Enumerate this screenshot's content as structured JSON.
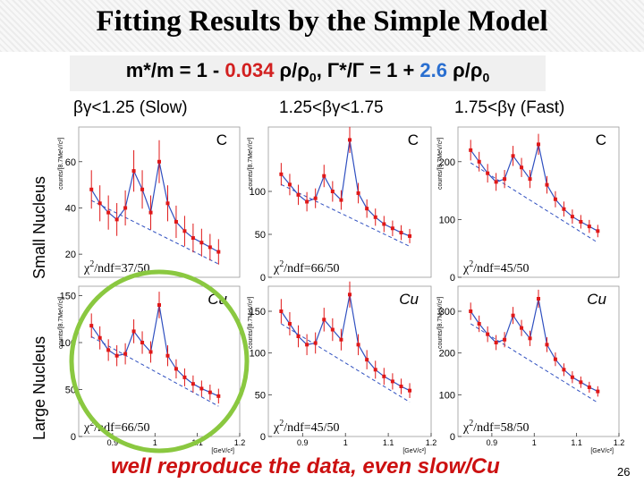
{
  "slide": {
    "title": "Fitting Results by the Simple Model",
    "formula": {
      "p1": "m*/m = 1 - ",
      "k1": "0.034",
      "p2": " ρ/ρ",
      "s1": "0",
      "p3": ",  Γ*/Γ = 1 + ",
      "k2": "2.6",
      "p4": " ρ/ρ",
      "s2": "0"
    },
    "col_heads": [
      "βγ<1.25 (Slow)",
      "1.25<βγ<1.75",
      "1.75<βγ (Fast)"
    ],
    "row_labels": [
      "Small Nucleus",
      "Large Nucleus"
    ],
    "bottom_text": "well reproduce the data, even slow/Cu",
    "page_number": "26",
    "colors": {
      "accent_red": "#d22020",
      "accent_blue": "#2a6fd0",
      "highlight_green": "#8ac840",
      "data_red": "#e01818",
      "fit_blue": "#3050c0",
      "bottom_text": "#cc1010"
    }
  },
  "chart_data": [
    {
      "type": "line",
      "target": "C",
      "x": [
        0.85,
        0.87,
        0.89,
        0.91,
        0.93,
        0.95,
        0.97,
        0.99,
        1.01,
        1.03,
        1.05,
        1.07,
        1.09,
        1.11,
        1.13,
        1.15
      ],
      "series": [
        {
          "name": "",
          "values": [
            48,
            42,
            38,
            35,
            40,
            56,
            48,
            38,
            60,
            42,
            34,
            30,
            27,
            25,
            23,
            21
          ]
        }
      ],
      "chi2": "/ndf=37/50",
      "ytick_labels": [
        "20",
        "40",
        "60"
      ],
      "ylim": [
        10,
        75
      ],
      "ylabel": "counts/[8.7MeV/c²]"
    },
    {
      "type": "line",
      "target": "C",
      "x": [
        0.85,
        0.87,
        0.89,
        0.91,
        0.93,
        0.95,
        0.97,
        0.99,
        1.01,
        1.03,
        1.05,
        1.07,
        1.09,
        1.11,
        1.13,
        1.15
      ],
      "series": [
        {
          "name": "",
          "values": [
            120,
            108,
            96,
            88,
            92,
            118,
            100,
            90,
            160,
            98,
            80,
            70,
            62,
            57,
            52,
            48
          ]
        }
      ],
      "chi2": "/ndf=66/50",
      "ytick_labels": [
        "0",
        "50",
        "100"
      ],
      "ylim": [
        0,
        175
      ],
      "ylabel": "counts/[8.7MeV/c²]"
    },
    {
      "type": "line",
      "target": "C",
      "x": [
        0.85,
        0.87,
        0.89,
        0.91,
        0.93,
        0.95,
        0.97,
        0.99,
        1.01,
        1.03,
        1.05,
        1.07,
        1.09,
        1.11,
        1.13,
        1.15
      ],
      "series": [
        {
          "name": "",
          "values": [
            220,
            200,
            180,
            165,
            170,
            210,
            190,
            170,
            230,
            160,
            135,
            118,
            105,
            96,
            88,
            80
          ]
        }
      ],
      "chi2": "/ndf=45/50",
      "ytick_labels": [
        "0",
        "100",
        "200"
      ],
      "ylim": [
        0,
        260
      ],
      "ylabel": "counts/[8.7MeV/c²]"
    },
    {
      "type": "line",
      "target": "Cu",
      "x": [
        0.85,
        0.87,
        0.89,
        0.91,
        0.93,
        0.95,
        0.97,
        0.99,
        1.01,
        1.03,
        1.05,
        1.07,
        1.09,
        1.11,
        1.13,
        1.15
      ],
      "series": [
        {
          "name": "",
          "values": [
            118,
            105,
            92,
            86,
            88,
            112,
            100,
            90,
            140,
            86,
            72,
            63,
            56,
            51,
            47,
            43
          ]
        }
      ],
      "chi2": "/ndf=66/50",
      "ytick_labels": [
        "0",
        "50",
        "100",
        "150"
      ],
      "ylim": [
        0,
        160
      ],
      "ylabel": "counts/[8.7MeV/c²]",
      "xtick_labels": [
        "0.9",
        "1",
        "1.1",
        "1.2"
      ],
      "xlabel": "[GeV/c²]"
    },
    {
      "type": "line",
      "target": "Cu",
      "x": [
        0.85,
        0.87,
        0.89,
        0.91,
        0.93,
        0.95,
        0.97,
        0.99,
        1.01,
        1.03,
        1.05,
        1.07,
        1.09,
        1.11,
        1.13,
        1.15
      ],
      "series": [
        {
          "name": "",
          "values": [
            150,
            135,
            120,
            110,
            112,
            140,
            128,
            116,
            170,
            110,
            92,
            80,
            72,
            66,
            60,
            55
          ]
        }
      ],
      "chi2": "/ndf=45/50",
      "ytick_labels": [
        "0",
        "50",
        "100",
        "150"
      ],
      "ylim": [
        0,
        180
      ],
      "ylabel": "counts/[8.7MeV/c²]",
      "xtick_labels": [
        "0.9",
        "1",
        "1.1",
        "1.2"
      ],
      "xlabel": "[GeV/c²]"
    },
    {
      "type": "line",
      "target": "Cu",
      "x": [
        0.85,
        0.87,
        0.89,
        0.91,
        0.93,
        0.95,
        0.97,
        0.99,
        1.01,
        1.03,
        1.05,
        1.07,
        1.09,
        1.11,
        1.13,
        1.15
      ],
      "series": [
        {
          "name": "",
          "values": [
            300,
            270,
            245,
            225,
            232,
            290,
            260,
            235,
            330,
            220,
            185,
            160,
            142,
            130,
            118,
            108
          ]
        }
      ],
      "chi2": "/ndf=58/50",
      "ytick_labels": [
        "0",
        "100",
        "200",
        "300"
      ],
      "ylim": [
        0,
        360
      ],
      "ylabel": "counts/[8.7MeV/c²]",
      "xtick_labels": [
        "0.9",
        "1",
        "1.1",
        "1.2"
      ],
      "xlabel": "[GeV/c²]"
    }
  ]
}
